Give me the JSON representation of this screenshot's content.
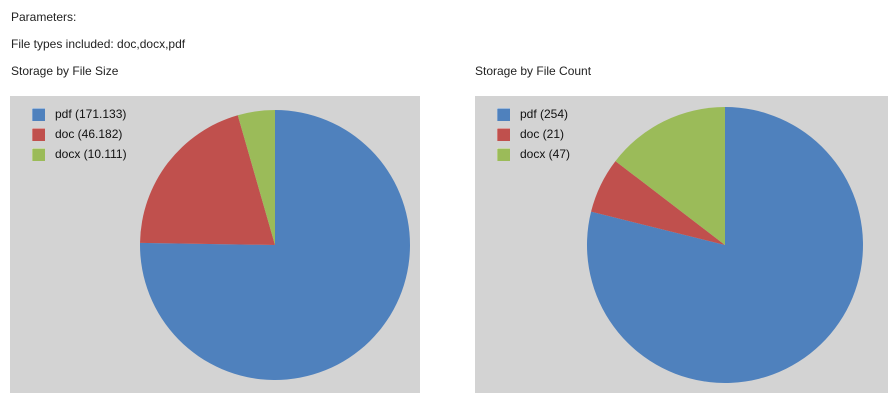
{
  "header": {
    "parameters_label": "Parameters:",
    "file_types_line": "File types included: doc,docx,pdf"
  },
  "panel_background": "#d3d3d3",
  "chart_data": [
    {
      "type": "pie",
      "title": "Storage by File Size",
      "categories": [
        "pdf",
        "doc",
        "docx"
      ],
      "values": [
        171.133,
        46.182,
        10.111
      ],
      "legend_labels": [
        "pdf (171.133)",
        "doc (46.182)",
        "docx (10.111)"
      ],
      "colors": [
        "#4f81bd",
        "#c0504d",
        "#9bbb59"
      ],
      "legend_position": "top-left",
      "start_angle_deg": 0,
      "direction": "clockwise"
    },
    {
      "type": "pie",
      "title": "Storage by File Count",
      "categories": [
        "pdf",
        "doc",
        "docx"
      ],
      "values": [
        254,
        21,
        47
      ],
      "legend_labels": [
        "pdf (254)",
        "doc (21)",
        "docx (47)"
      ],
      "colors": [
        "#4f81bd",
        "#c0504d",
        "#9bbb59"
      ],
      "legend_position": "top-left",
      "start_angle_deg": 0,
      "direction": "clockwise"
    }
  ]
}
